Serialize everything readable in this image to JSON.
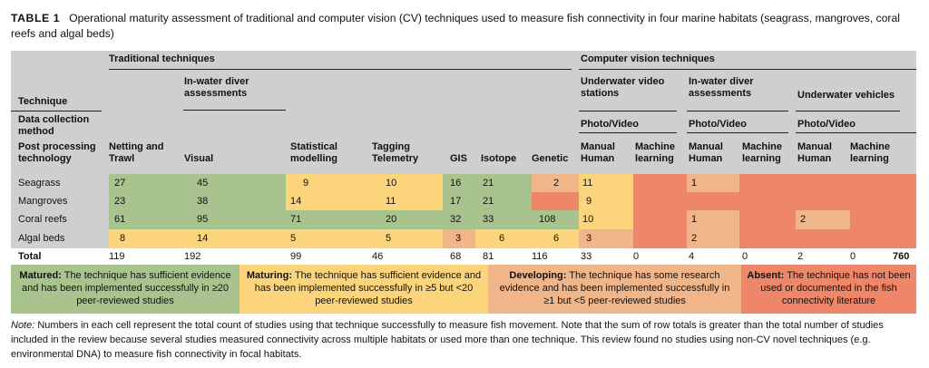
{
  "caption": {
    "label": "TABLE 1",
    "text": "Operational maturity assessment of traditional and computer vision (CV) techniques used to measure fish connectivity in four marine habitats (seagrass, mangroves, coral reefs and algal beds)"
  },
  "header": {
    "traditional": "Traditional techniques",
    "cv": "Computer vision techniques",
    "technique": "Technique",
    "data_collection": "Data collection method",
    "post_processing": "Post processing technology",
    "in_water_diver": "In-water diver assessments",
    "uw_video": "Underwater video stations",
    "cv_diver": "In-water diver assessments",
    "uw_vehicles": "Underwater vehicles",
    "photo_video_1": "Photo/Video",
    "photo_video_2": "Photo/Video",
    "photo_video_3": "Photo/Video",
    "columns": [
      "Netting and Trawl",
      "Visual",
      "Statistical modelling",
      "Tagging Telemetry",
      "GIS",
      "Isotope",
      "Genetic",
      "Manual Human",
      "Machine learning",
      "Manual Human",
      "Machine learning",
      "Manual Human",
      "Machine learning"
    ]
  },
  "rows": [
    {
      "name": "Seagrass",
      "values": [
        "27",
        "45",
        "9",
        "10",
        "16",
        "21",
        "2",
        "11",
        "",
        "1",
        "",
        "",
        ""
      ]
    },
    {
      "name": "Mangroves",
      "values": [
        "23",
        "38",
        "14",
        "11",
        "17",
        "21",
        "",
        "9",
        "",
        "",
        "",
        "",
        ""
      ]
    },
    {
      "name": "Coral reefs",
      "values": [
        "61",
        "95",
        "71",
        "20",
        "32",
        "33",
        "108",
        "10",
        "",
        "1",
        "",
        "2",
        ""
      ]
    },
    {
      "name": "Algal beds",
      "values": [
        "8",
        "14",
        "5",
        "5",
        "3",
        "6",
        "6",
        "3",
        "",
        "2",
        "",
        "",
        ""
      ]
    }
  ],
  "total": {
    "label": "Total",
    "values": [
      "119",
      "192",
      "99",
      "46",
      "68",
      "81",
      "116",
      "33",
      "0",
      "4",
      "0",
      "2",
      "0"
    ],
    "grand": "760"
  },
  "legend": [
    {
      "title": "Matured:",
      "text": "The technique has sufficient evidence and has been implemented successfully in ≥20 peer-reviewed studies",
      "color": "#a9c38f"
    },
    {
      "title": "Maturing:",
      "text": "The technique has sufficient evidence and has been implemented successfully in ≥5 but <20 peer-reviewed studies",
      "color": "#fcd47c"
    },
    {
      "title": "Developing:",
      "text": "The technique has some research evidence and has been implemented successfully in ≥1 but <5 peer-reviewed studies",
      "color": "#f1b58a"
    },
    {
      "title": "Absent:",
      "text": "The technique has not been used or documented in the fish connectivity literature",
      "color": "#ee8669"
    }
  ],
  "note": {
    "label": "Note:",
    "text": "Numbers in each cell represent the total count of studies using that technique successfully to measure fish movement. Note that the sum of row totals is greater than the total number of studies included in the review because several studies measured connectivity across multiple habitats or used more than one technique. This review found no studies using non-CV novel techniques (e.g. environmental DNA) to measure fish connectivity in focal habitats."
  },
  "colors": {
    "matured": "#a9c38f",
    "maturing": "#fcd47c",
    "developing": "#f1b58a",
    "absent": "#ee8669",
    "header_bg": "#cfcfcf"
  }
}
